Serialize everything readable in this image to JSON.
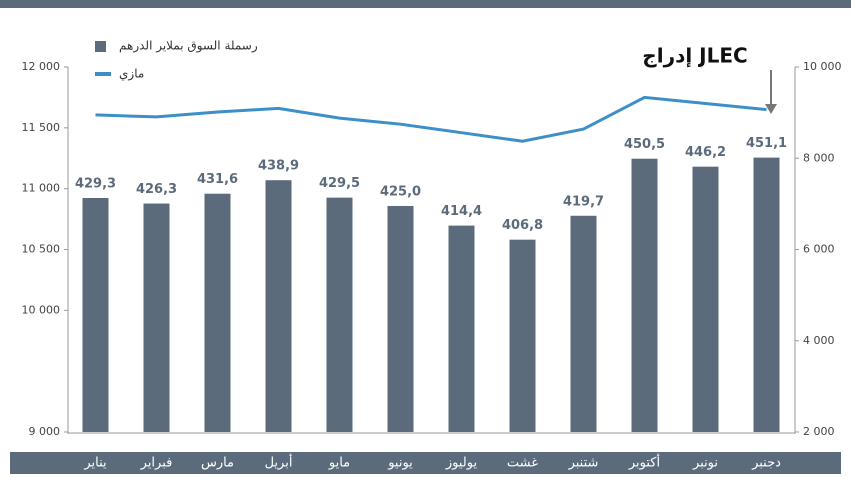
{
  "chart_data": {
    "type": "bar",
    "categories": [
      "يناير",
      "فبراير",
      "مارس",
      "أبريل",
      "مايو",
      "يونيو",
      "يوليوز",
      "غشت",
      "شتنبر",
      "أكتوبر",
      "نونبر",
      "دجنبر"
    ],
    "series": [
      {
        "name": "رسملة السوق بملاير الدرهم",
        "type": "bar",
        "color": "#5b6b7b",
        "axis": "y3",
        "values": [
          429.3,
          426.3,
          431.6,
          438.9,
          429.5,
          425.0,
          414.4,
          406.8,
          419.7,
          450.5,
          446.2,
          451.1
        ],
        "value_labels": [
          "429,3",
          "426,3",
          "431,6",
          "438,9",
          "429,5",
          "425,0",
          "414,4",
          "406,8",
          "419,7",
          "450,5",
          "446,2",
          "451,1"
        ]
      },
      {
        "name": "مازي",
        "type": "line",
        "color": "#3d8fc7",
        "axis": "y",
        "values": [
          11606,
          11590,
          11630,
          11660,
          11580,
          11530,
          11460,
          11390,
          11490,
          11750,
          11700,
          11650
        ]
      }
    ],
    "ylim": [
      9000,
      12000
    ],
    "yticks": [
      {
        "value": 9000,
        "label": "9 000"
      },
      {
        "value": 10000,
        "label": "10 000"
      },
      {
        "value": 10500,
        "label": "10 500"
      },
      {
        "value": 11000,
        "label": "11 000"
      },
      {
        "value": 11500,
        "label": "11 500"
      },
      {
        "value": 12000,
        "label": "12 000"
      }
    ],
    "y2lim": [
      2000,
      10000
    ],
    "y2ticks": [
      {
        "value": 2000,
        "label": "2 000"
      },
      {
        "value": 4000,
        "label": "4 000"
      },
      {
        "value": 6000,
        "label": "6 000"
      },
      {
        "value": 8000,
        "label": "8 000"
      },
      {
        "value": 10000,
        "label": "10 000"
      }
    ],
    "y3lim": [
      303,
      500
    ],
    "annotation": "إدراج JLEC",
    "legend": "top-left"
  }
}
